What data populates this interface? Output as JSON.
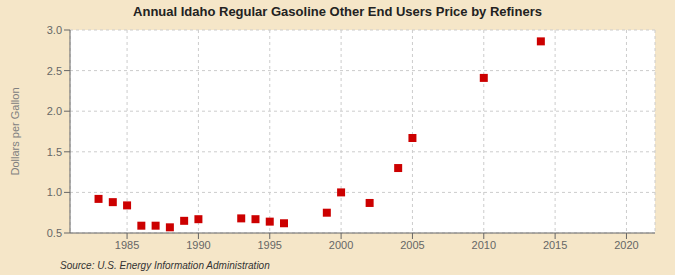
{
  "chart_data": {
    "type": "scatter",
    "title": "Annual Idaho Regular Gasoline Other End Users Price by Refiners",
    "ylabel": "Dollars per Gallon",
    "annotation": "Source: U.S. Energy Information Administration",
    "color": "#cc0000",
    "marker": "square",
    "grid": true,
    "xlim": [
      1981,
      2022
    ],
    "ylim": [
      0.5,
      3.0
    ],
    "xticks": [
      1985,
      1990,
      1995,
      2000,
      2005,
      2010,
      2015,
      2020
    ],
    "yticks": [
      0.5,
      {
        "value": 1,
        "label": "1.0"
      },
      1.5,
      {
        "value": 2,
        "label": "2.0"
      },
      2.5,
      {
        "value": 3,
        "label": "3.0"
      }
    ],
    "x": [
      1983,
      1984,
      1985,
      1986,
      1987,
      1988,
      1989,
      1990,
      1993,
      1994,
      1995,
      1996,
      1999,
      2000,
      2002,
      2004,
      2005,
      2010,
      2014
    ],
    "values": [
      0.92,
      0.88,
      0.84,
      0.59,
      0.59,
      0.57,
      0.65,
      0.67,
      0.68,
      0.67,
      0.64,
      0.62,
      0.75,
      1.0,
      0.87,
      1.3,
      1.67,
      2.41,
      2.86
    ]
  }
}
